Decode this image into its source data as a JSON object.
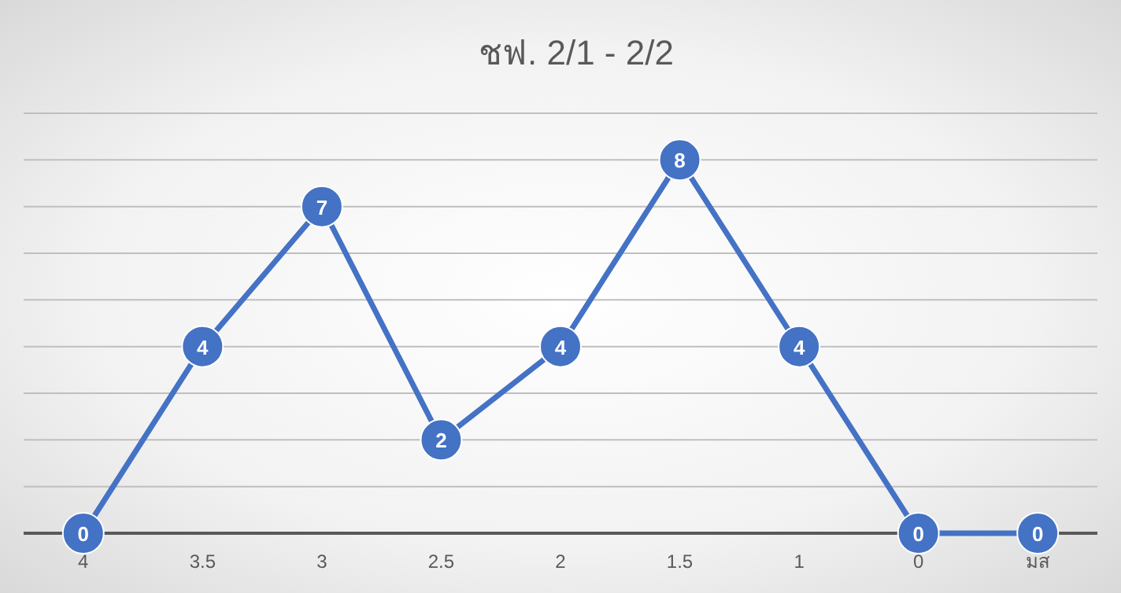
{
  "chart_data": {
    "type": "line",
    "title": "ชฟ. 2/1 - 2/2",
    "categories": [
      "4",
      "3.5",
      "3",
      "2.5",
      "2",
      "1.5",
      "1",
      "0",
      "มส"
    ],
    "series": [
      {
        "color": "#4472c4",
        "values": [
          0,
          4,
          7,
          2,
          4,
          8,
          4,
          0,
          0
        ]
      }
    ],
    "ylim": [
      0,
      9
    ],
    "yticks": [
      {
        "value": 0,
        "label": null
      },
      {
        "value": 1,
        "label": null
      },
      {
        "value": 2,
        "label": null
      },
      {
        "value": 3,
        "label": null
      },
      {
        "value": 4,
        "label": null
      },
      {
        "value": 5,
        "label": null
      },
      {
        "value": 6,
        "label": null
      },
      {
        "value": 7,
        "label": null
      },
      {
        "value": 8,
        "label": null
      },
      {
        "value": 9,
        "label": null
      }
    ],
    "grid": "y",
    "tick_labels": "x",
    "data_labels": true,
    "marker": "circle",
    "line_style": "solid"
  }
}
